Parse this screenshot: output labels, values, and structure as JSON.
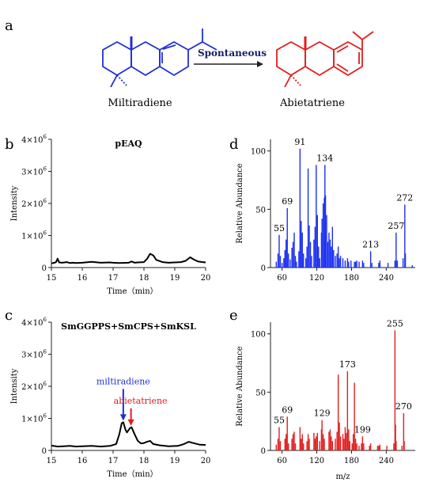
{
  "panel_a": {
    "letter": "a",
    "left_label": "Miltiradiene",
    "right_label": "Abietatriene",
    "arrow_label": "Spontaneous",
    "colors": {
      "left": "#1f2fd6",
      "right": "#e21d1d",
      "arrow_text": "#16206a"
    }
  },
  "chart_data": [
    {
      "panel": "b",
      "type": "line",
      "title": "pEAQ",
      "xlabel": "Time（min）",
      "ylabel": "Intensity",
      "xlim": [
        15,
        20
      ],
      "ylim": [
        0,
        4000000
      ],
      "x_ticks": [
        "15",
        "16",
        "17",
        "18",
        "19",
        "20"
      ],
      "y_ticks": [
        {
          "value": 0,
          "base": "0",
          "exp": ""
        },
        {
          "value": 1000000,
          "base": "1×10",
          "exp": "6"
        },
        {
          "value": 2000000,
          "base": "2×10",
          "exp": "6"
        },
        {
          "value": 3000000,
          "base": "3×10",
          "exp": "6"
        },
        {
          "value": 4000000,
          "base": "4×10",
          "exp": "6"
        }
      ],
      "x": [
        15.0,
        15.1,
        15.15,
        15.2,
        15.25,
        15.35,
        15.5,
        15.6,
        15.7,
        15.8,
        16.0,
        16.3,
        16.6,
        16.9,
        17.0,
        17.2,
        17.5,
        17.6,
        17.7,
        17.8,
        18.0,
        18.1,
        18.2,
        18.3,
        18.4,
        18.6,
        18.8,
        19.0,
        19.2,
        19.35,
        19.5,
        19.6,
        19.75,
        19.9,
        20.0
      ],
      "y": [
        130000,
        150000,
        170000,
        280000,
        160000,
        150000,
        170000,
        140000,
        150000,
        140000,
        150000,
        180000,
        150000,
        160000,
        150000,
        140000,
        150000,
        190000,
        150000,
        160000,
        170000,
        270000,
        430000,
        380000,
        240000,
        170000,
        150000,
        160000,
        170000,
        210000,
        320000,
        260000,
        190000,
        170000,
        160000
      ],
      "color": "#000000"
    },
    {
      "panel": "c",
      "type": "line",
      "title": "SmGGPPS+SmCPS+SmKSL",
      "xlabel": "Time（min）",
      "ylabel": "Intensity",
      "xlim": [
        15,
        20
      ],
      "ylim": [
        0,
        4000000
      ],
      "x_ticks": [
        "15",
        "16",
        "17",
        "18",
        "19",
        "20"
      ],
      "y_ticks": [
        {
          "value": 0,
          "base": "0",
          "exp": ""
        },
        {
          "value": 1000000,
          "base": "1×10",
          "exp": "6"
        },
        {
          "value": 2000000,
          "base": "2×10",
          "exp": "6"
        },
        {
          "value": 3000000,
          "base": "3×10",
          "exp": "6"
        },
        {
          "value": 4000000,
          "base": "4×10",
          "exp": "6"
        }
      ],
      "x": [
        15.0,
        15.2,
        15.4,
        15.6,
        15.8,
        16.0,
        16.3,
        16.6,
        16.9,
        17.1,
        17.2,
        17.28,
        17.33,
        17.4,
        17.45,
        17.55,
        17.6,
        17.7,
        17.8,
        17.9,
        18.0,
        18.1,
        18.2,
        18.3,
        18.5,
        18.8,
        19.1,
        19.3,
        19.45,
        19.6,
        19.8,
        20.0
      ],
      "y": [
        150000,
        120000,
        130000,
        140000,
        120000,
        130000,
        140000,
        120000,
        140000,
        200000,
        500000,
        850000,
        880000,
        650000,
        560000,
        700000,
        720000,
        500000,
        300000,
        220000,
        230000,
        270000,
        300000,
        200000,
        160000,
        130000,
        140000,
        200000,
        270000,
        230000,
        180000,
        170000
      ],
      "color": "#000000",
      "annotations": [
        {
          "text": "miltiradiene",
          "x": 17.33,
          "color": "#1f2fd6"
        },
        {
          "text": "abietatriene",
          "x": 17.58,
          "color": "#e21d1d"
        }
      ]
    },
    {
      "panel": "d",
      "type": "bar",
      "title": "",
      "xlabel": "",
      "ylabel": "Relative Abundance",
      "xlim": [
        40,
        290
      ],
      "ylim": [
        0,
        110
      ],
      "x_ticks": [
        "60",
        "120",
        "180",
        "240"
      ],
      "y_ticks": [
        "0",
        "50",
        "100"
      ],
      "color": "#1b2ff0",
      "peaks": [
        [
          50,
          5
        ],
        [
          53,
          12
        ],
        [
          55,
          28
        ],
        [
          57,
          10
        ],
        [
          60,
          4
        ],
        [
          63,
          8
        ],
        [
          65,
          15
        ],
        [
          67,
          24
        ],
        [
          69,
          51
        ],
        [
          71,
          12
        ],
        [
          74,
          7
        ],
        [
          77,
          17
        ],
        [
          79,
          22
        ],
        [
          81,
          30
        ],
        [
          83,
          10
        ],
        [
          85,
          5
        ],
        [
          89,
          14
        ],
        [
          91,
          102
        ],
        [
          93,
          40
        ],
        [
          95,
          30
        ],
        [
          97,
          12
        ],
        [
          101,
          8
        ],
        [
          103,
          18
        ],
        [
          105,
          85
        ],
        [
          107,
          36
        ],
        [
          109,
          22
        ],
        [
          111,
          10
        ],
        [
          115,
          24
        ],
        [
          117,
          35
        ],
        [
          119,
          88
        ],
        [
          121,
          45
        ],
        [
          123,
          18
        ],
        [
          125,
          8
        ],
        [
          128,
          30
        ],
        [
          129,
          42
        ],
        [
          131,
          55
        ],
        [
          133,
          60
        ],
        [
          134,
          88
        ],
        [
          135,
          62
        ],
        [
          137,
          45
        ],
        [
          139,
          22
        ],
        [
          141,
          30
        ],
        [
          143,
          24
        ],
        [
          145,
          18
        ],
        [
          147,
          35
        ],
        [
          149,
          15
        ],
        [
          152,
          10
        ],
        [
          155,
          12
        ],
        [
          157,
          18
        ],
        [
          159,
          8
        ],
        [
          161,
          10
        ],
        [
          165,
          8
        ],
        [
          169,
          6
        ],
        [
          173,
          8
        ],
        [
          175,
          5
        ],
        [
          179,
          6
        ],
        [
          185,
          5
        ],
        [
          187,
          5
        ],
        [
          189,
          6
        ],
        [
          193,
          5
        ],
        [
          199,
          6
        ],
        [
          201,
          4
        ],
        [
          213,
          14
        ],
        [
          215,
          4
        ],
        [
          227,
          4
        ],
        [
          229,
          6
        ],
        [
          243,
          4
        ],
        [
          255,
          6
        ],
        [
          257,
          30
        ],
        [
          259,
          6
        ],
        [
          269,
          8
        ],
        [
          272,
          54
        ],
        [
          273,
          12
        ],
        [
          285,
          2
        ]
      ],
      "peak_labels": [
        {
          "mz": 55,
          "text": "55"
        },
        {
          "mz": 69,
          "text": "69"
        },
        {
          "mz": 91,
          "text": "91"
        },
        {
          "mz": 134,
          "text": "134"
        },
        {
          "mz": 213,
          "text": "213"
        },
        {
          "mz": 257,
          "text": "257"
        },
        {
          "mz": 272,
          "text": "272"
        }
      ]
    },
    {
      "panel": "e",
      "type": "bar",
      "title": "",
      "xlabel": "m/z",
      "ylabel": "Relative Abundance",
      "xlim": [
        40,
        290
      ],
      "ylim": [
        0,
        110
      ],
      "x_ticks": [
        "60",
        "120",
        "180",
        "240"
      ],
      "y_ticks": [
        "0",
        "50",
        "100"
      ],
      "color": "#e21d1d",
      "peaks": [
        [
          50,
          5
        ],
        [
          53,
          10
        ],
        [
          55,
          20
        ],
        [
          57,
          8
        ],
        [
          65,
          10
        ],
        [
          67,
          14
        ],
        [
          69,
          29
        ],
        [
          71,
          6
        ],
        [
          77,
          10
        ],
        [
          79,
          14
        ],
        [
          81,
          16
        ],
        [
          83,
          6
        ],
        [
          91,
          20
        ],
        [
          93,
          10
        ],
        [
          95,
          14
        ],
        [
          97,
          6
        ],
        [
          103,
          8
        ],
        [
          105,
          14
        ],
        [
          107,
          10
        ],
        [
          115,
          15
        ],
        [
          117,
          10
        ],
        [
          119,
          12
        ],
        [
          121,
          15
        ],
        [
          125,
          8
        ],
        [
          128,
          18
        ],
        [
          129,
          26
        ],
        [
          131,
          14
        ],
        [
          133,
          10
        ],
        [
          141,
          16
        ],
        [
          143,
          18
        ],
        [
          145,
          12
        ],
        [
          147,
          8
        ],
        [
          152,
          10
        ],
        [
          155,
          16
        ],
        [
          157,
          65
        ],
        [
          159,
          24
        ],
        [
          161,
          12
        ],
        [
          165,
          14
        ],
        [
          167,
          10
        ],
        [
          169,
          20
        ],
        [
          171,
          15
        ],
        [
          173,
          68
        ],
        [
          175,
          18
        ],
        [
          177,
          8
        ],
        [
          181,
          6
        ],
        [
          183,
          14
        ],
        [
          185,
          58
        ],
        [
          187,
          10
        ],
        [
          189,
          6
        ],
        [
          193,
          4
        ],
        [
          197,
          6
        ],
        [
          199,
          12
        ],
        [
          201,
          6
        ],
        [
          211,
          4
        ],
        [
          213,
          6
        ],
        [
          225,
          4
        ],
        [
          227,
          4
        ],
        [
          229,
          5
        ],
        [
          241,
          4
        ],
        [
          253,
          6
        ],
        [
          255,
          103
        ],
        [
          256,
          22
        ],
        [
          257,
          8
        ],
        [
          267,
          4
        ],
        [
          270,
          32
        ],
        [
          271,
          8
        ]
      ],
      "peak_labels": [
        {
          "mz": 55,
          "text": "55"
        },
        {
          "mz": 69,
          "text": "69"
        },
        {
          "mz": 129,
          "text": "129"
        },
        {
          "mz": 173,
          "text": "173"
        },
        {
          "mz": 199,
          "text": "199"
        },
        {
          "mz": 255,
          "text": "255"
        },
        {
          "mz": 270,
          "text": "270"
        }
      ]
    }
  ]
}
